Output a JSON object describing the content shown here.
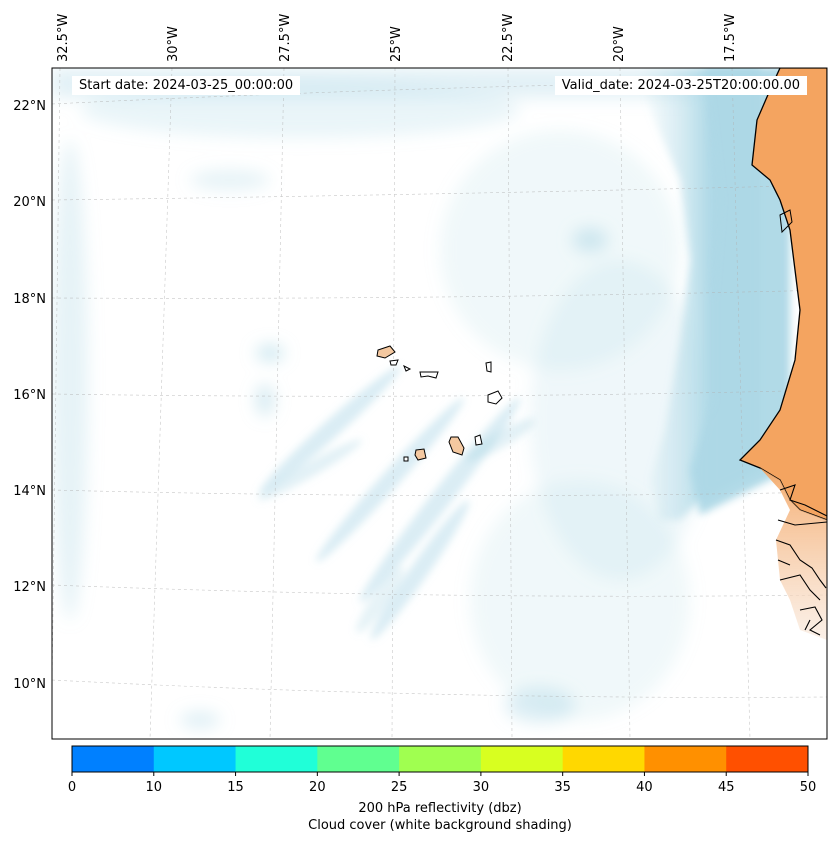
{
  "map": {
    "start_label": "Start date: 2024-03-25_00:00:00",
    "valid_label": "Valid_date: 2024-03-25T20:00:00.00",
    "lon_labels": [
      "32.5°W",
      "30°W",
      "27.5°W",
      "25°W",
      "22.5°W",
      "20°W",
      "17.5°W"
    ],
    "lat_labels": [
      "22°N",
      "20°N",
      "18°N",
      "16°N",
      "14°N",
      "12°N",
      "10°N"
    ],
    "land_color": "#f4a460",
    "cloud_color": "#add8e6"
  },
  "colorbar": {
    "tick_labels": [
      "0",
      "10",
      "15",
      "20",
      "25",
      "30",
      "35",
      "40",
      "45",
      "50"
    ],
    "colors": [
      "#0080ff",
      "#00c8ff",
      "#20ffd8",
      "#60ff90",
      "#a0ff50",
      "#d8ff20",
      "#ffd800",
      "#ff9000",
      "#ff5000"
    ],
    "title_line1": "200 hPa reflectivity (dbz)",
    "title_line2": "Cloud cover (white background shading)"
  }
}
